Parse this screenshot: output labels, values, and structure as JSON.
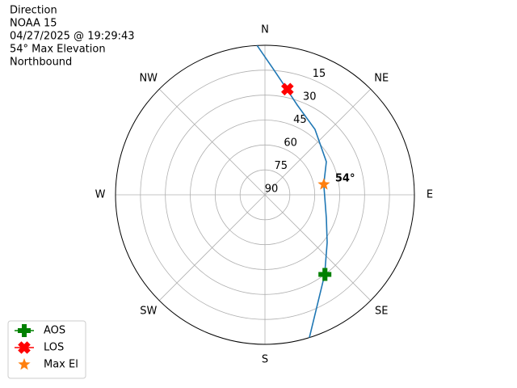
{
  "chart_data": {
    "type": "polar",
    "title": [
      "Direction",
      "NOAA 15",
      "04/27/2025 @ 19:29:43",
      "54° Max Elevation",
      "Northbound"
    ],
    "theta_ticks": [
      {
        "value": 0,
        "label": "N"
      },
      {
        "value": 45,
        "label": "NE"
      },
      {
        "value": 90,
        "label": "E"
      },
      {
        "value": 135,
        "label": "SE"
      },
      {
        "value": 180,
        "label": "S"
      },
      {
        "value": 225,
        "label": "SW"
      },
      {
        "value": 270,
        "label": "W"
      },
      {
        "value": 315,
        "label": "NW"
      }
    ],
    "rlim": [
      90,
      0
    ],
    "rticks": [
      15,
      30,
      45,
      60,
      75,
      90
    ],
    "grid": true,
    "legend": "lower left",
    "track": {
      "color": "#1f77b4",
      "azimuth": [
        357,
        3.7,
        11.6,
        19.8,
        37.4,
        61.7,
        79.8,
        110.9,
        127.5,
        143.2,
        162.7
      ],
      "elevation": [
        0,
        14,
        25,
        32.6,
        40.4,
        48,
        54,
        50.4,
        42.8,
        30,
        0
      ]
    },
    "markers": [
      {
        "name": "AOS",
        "color": "#008000",
        "marker": "plus",
        "azimuth": 143,
        "elevation": 30
      },
      {
        "name": "LOS",
        "color": "#ff0000",
        "marker": "x",
        "azimuth": 12,
        "elevation": 25
      },
      {
        "name": "Max El",
        "color": "#ff7f0e",
        "marker": "star",
        "azimuth": 80,
        "elevation": 54,
        "value_label": "54°"
      }
    ]
  }
}
